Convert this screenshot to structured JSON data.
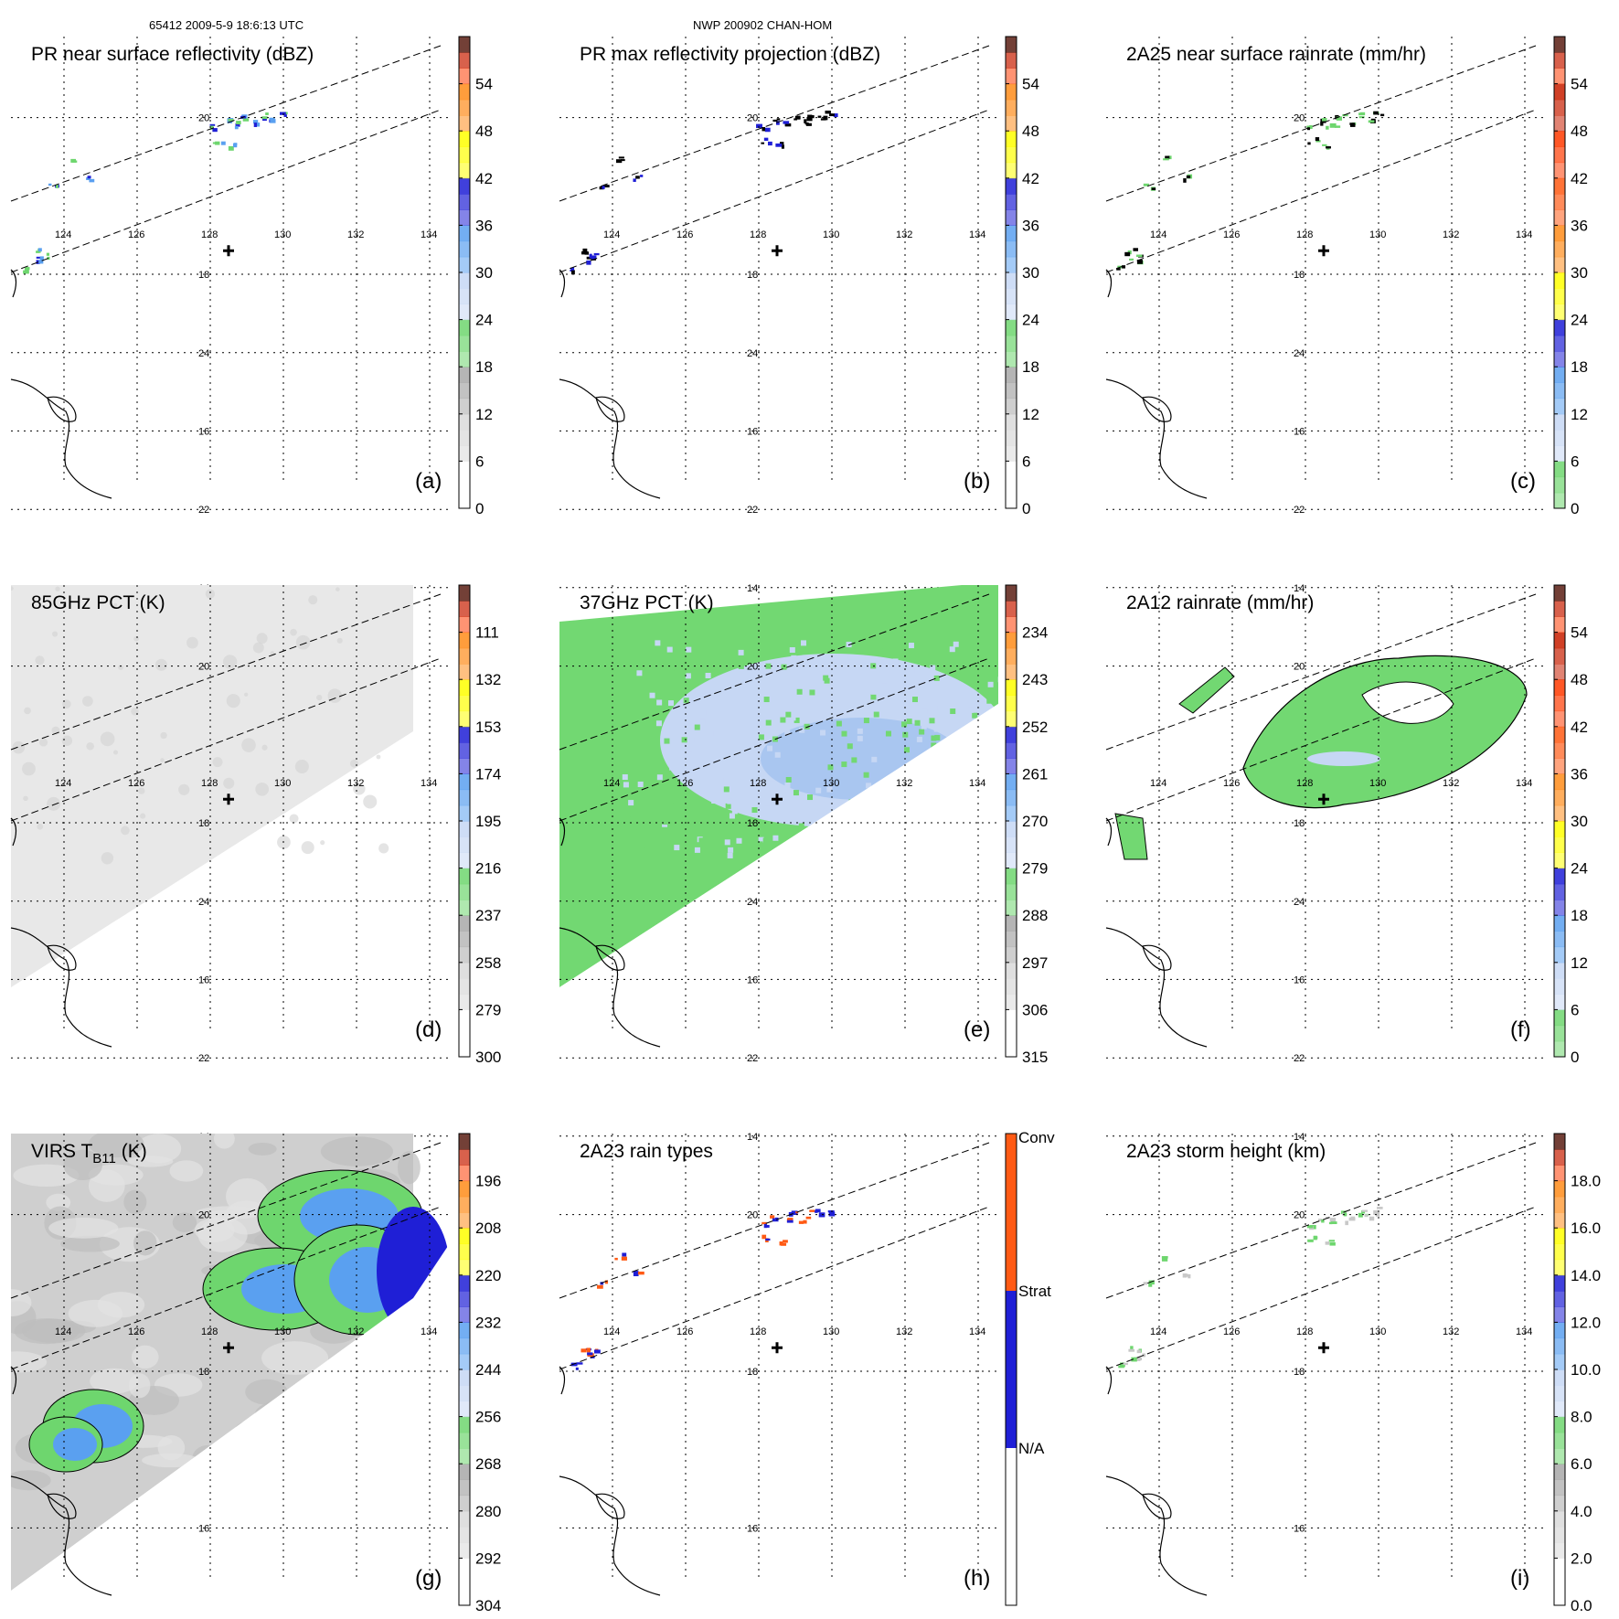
{
  "header": {
    "left": "65412 2009-5-9 18:6:13 UTC",
    "center": "NWP 200902 CHAN-HOM"
  },
  "map": {
    "lon_labels": [
      "124",
      "126",
      "128",
      "130",
      "132",
      "134"
    ],
    "lat_labels": [
      "14",
      "16",
      "18",
      "20",
      "22",
      "24"
    ]
  },
  "colors": {
    "green": "#6ed66e",
    "lightblue": "#c6d7f4",
    "blue": "#1f1fd6",
    "orange": "#ff5a14",
    "yellow": "#ffff00",
    "gray_light": "#e6e6e6"
  },
  "chart_data": [
    {
      "type": "heatmap",
      "panel_label": "(a)",
      "title": "PR near surface reflectivity (dBZ)",
      "colorbar": {
        "min": 0,
        "max": 60,
        "ticks": [
          "0",
          "6",
          "12",
          "18",
          "24",
          "30",
          "36",
          "42",
          "48",
          "54"
        ]
      },
      "field": "pr_surface"
    },
    {
      "type": "heatmap",
      "panel_label": "(b)",
      "title": "PR max reflectivity projection (dBZ)",
      "colorbar": {
        "min": 0,
        "max": 60,
        "ticks": [
          "0",
          "6",
          "12",
          "18",
          "24",
          "30",
          "36",
          "42",
          "48",
          "54"
        ]
      },
      "field": "pr_max"
    },
    {
      "type": "heatmap",
      "panel_label": "(c)",
      "title": "2A25 near surface rainrate (mm/hr)",
      "colorbar": {
        "min": 0,
        "max": 60,
        "ticks": [
          "0",
          "6",
          "12",
          "18",
          "24",
          "30",
          "36",
          "42",
          "48",
          "54"
        ]
      },
      "field": "rain_2a25"
    },
    {
      "type": "heatmap",
      "panel_label": "(d)",
      "title": "85GHz PCT (K)",
      "colorbar": {
        "min": 300,
        "max": 90,
        "ticks": [
          "300",
          "279",
          "258",
          "237",
          "216",
          "195",
          "174",
          "153",
          "132",
          "111"
        ]
      },
      "field": "pct85"
    },
    {
      "type": "heatmap",
      "panel_label": "(e)",
      "title": "37GHz PCT (K)",
      "colorbar": {
        "min": 315,
        "max": 225,
        "ticks": [
          "315",
          "306",
          "297",
          "288",
          "279",
          "270",
          "261",
          "252",
          "243",
          "234"
        ]
      },
      "field": "pct37"
    },
    {
      "type": "heatmap",
      "panel_label": "(f)",
      "title": "2A12 rainrate (mm/hr)",
      "colorbar": {
        "min": 0,
        "max": 60,
        "ticks": [
          "0",
          "6",
          "12",
          "18",
          "24",
          "30",
          "36",
          "42",
          "48",
          "54"
        ]
      },
      "field": "rain_2a12"
    },
    {
      "type": "heatmap",
      "panel_label": "(g)",
      "title_main": "VIRS T",
      "title_sub": "B11",
      "title_unit": " (K)",
      "colorbar": {
        "min": 304,
        "max": 184,
        "ticks": [
          "304",
          "292",
          "280",
          "268",
          "256",
          "244",
          "232",
          "220",
          "208",
          "196"
        ]
      },
      "field": "virs"
    },
    {
      "type": "heatmap",
      "panel_label": "(h)",
      "title": "2A23 rain types",
      "colorbar": {
        "categorical": true,
        "ticks": [
          "N/A",
          "Strat",
          "Conv"
        ]
      },
      "field": "rain_types"
    },
    {
      "type": "heatmap",
      "panel_label": "(i)",
      "title": "2A23 storm height (km)",
      "colorbar": {
        "min": 0,
        "max": 20,
        "ticks": [
          "0.0",
          "2.0",
          "4.0",
          "6.0",
          "8.0",
          "10.0",
          "12.0",
          "14.0",
          "16.0",
          "18.0"
        ]
      },
      "field": "storm_height"
    }
  ]
}
